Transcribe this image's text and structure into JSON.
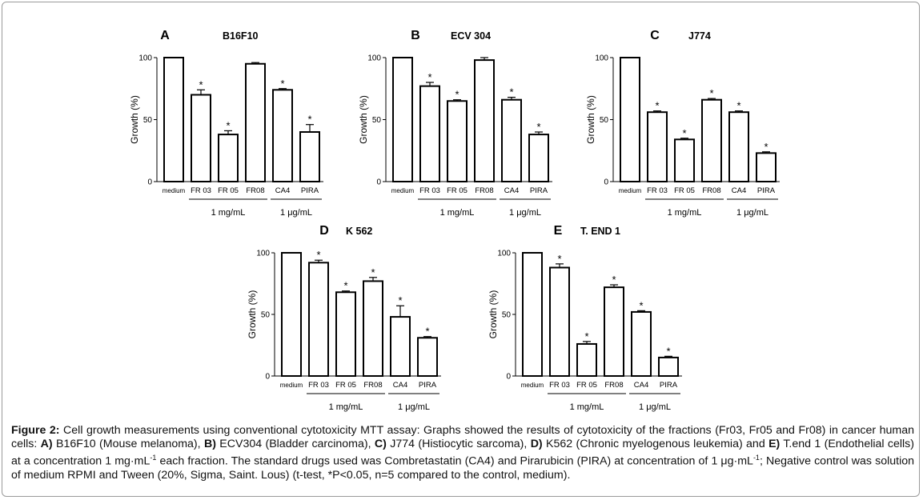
{
  "chart_data": [
    {
      "type": "bar",
      "panel": "A",
      "title": "B16F10",
      "categories": [
        "medium",
        "FR 03",
        "FR 05",
        "FR08",
        "CA4",
        "PIRA"
      ],
      "values": [
        100,
        70,
        38,
        95,
        74,
        40
      ],
      "errors": [
        0,
        4,
        3,
        1,
        1,
        6
      ],
      "significant": [
        false,
        true,
        true,
        false,
        true,
        true
      ],
      "ylabel": "Growth (%)",
      "ylim": [
        0,
        100
      ],
      "yticks": [
        "0",
        "50",
        "100"
      ],
      "groups": [
        {
          "label": "1 mg/mL",
          "from": 1,
          "to": 3
        },
        {
          "label": "1 μg/mL",
          "from": 4,
          "to": 5
        }
      ]
    },
    {
      "type": "bar",
      "panel": "B",
      "title": "ECV 304",
      "categories": [
        "medium",
        "FR 03",
        "FR 05",
        "FR08",
        "CA4",
        "PIRA"
      ],
      "values": [
        100,
        77,
        65,
        98,
        66,
        38
      ],
      "errors": [
        0,
        3,
        1,
        2,
        2,
        2
      ],
      "significant": [
        false,
        true,
        true,
        false,
        true,
        true
      ],
      "ylabel": "Growth (%)",
      "ylim": [
        0,
        100
      ],
      "yticks": [
        "0",
        "50",
        "100"
      ],
      "groups": [
        {
          "label": "1 mg/mL",
          "from": 1,
          "to": 3
        },
        {
          "label": "1 μg/mL",
          "from": 4,
          "to": 5
        }
      ]
    },
    {
      "type": "bar",
      "panel": "C",
      "title": "J774",
      "categories": [
        "medium",
        "FR 03",
        "FR 05",
        "FR08",
        "CA4",
        "PIRA"
      ],
      "values": [
        100,
        56,
        34,
        66,
        56,
        23
      ],
      "errors": [
        0,
        1,
        1,
        1,
        1,
        1
      ],
      "significant": [
        false,
        true,
        true,
        true,
        true,
        true
      ],
      "ylabel": "Growth (%)",
      "ylim": [
        0,
        100
      ],
      "yticks": [
        "0",
        "50",
        "100"
      ],
      "groups": [
        {
          "label": "1 mg/mL",
          "from": 1,
          "to": 3
        },
        {
          "label": "1 μg/mL",
          "from": 4,
          "to": 5
        }
      ]
    },
    {
      "type": "bar",
      "panel": "D",
      "title": "K 562",
      "categories": [
        "medium",
        "FR 03",
        "FR 05",
        "FR08",
        "CA4",
        "PIRA"
      ],
      "values": [
        100,
        92,
        68,
        77,
        48,
        31
      ],
      "errors": [
        0,
        2,
        1,
        3,
        9,
        1
      ],
      "significant": [
        false,
        true,
        true,
        true,
        true,
        true
      ],
      "ylabel": "Growth (%)",
      "ylim": [
        0,
        100
      ],
      "yticks": [
        "0",
        "50",
        "100"
      ],
      "groups": [
        {
          "label": "1 mg/mL",
          "from": 1,
          "to": 3
        },
        {
          "label": "1 μg/mL",
          "from": 4,
          "to": 5
        }
      ]
    },
    {
      "type": "bar",
      "panel": "E",
      "title": "T. END 1",
      "categories": [
        "medium",
        "FR 03",
        "FR 05",
        "FR08",
        "CA4",
        "PIRA"
      ],
      "values": [
        100,
        88,
        26,
        72,
        52,
        15
      ],
      "errors": [
        0,
        3,
        2,
        2,
        1,
        1
      ],
      "significant": [
        false,
        true,
        true,
        true,
        true,
        true
      ],
      "ylabel": "Growth (%)",
      "ylim": [
        0,
        100
      ],
      "yticks": [
        "0",
        "50",
        "100"
      ],
      "groups": [
        {
          "label": "1 mg/mL",
          "from": 1,
          "to": 3
        },
        {
          "label": "1 μg/mL",
          "from": 4,
          "to": 5
        }
      ]
    }
  ],
  "caption": {
    "figure_label": "Figure 2:",
    "text_1": " Cell growth measurements using conventional cytotoxicity MTT assay: Graphs showed the results of cytotoxicity of the fractions (Fr03, Fr05 and Fr08) in cancer human cells: ",
    "a_label": "A)",
    "a_text": " B16F10 (Mouse melanoma), ",
    "b_label": "B)",
    "b_text": " ECV304 (Bladder carcinoma), ",
    "c_label": "C)",
    "c_text": " J774 (Histiocytic sarcoma), ",
    "d_label": "D)",
    "d_text": " K562 (Chronic myelogenous leukemia) and ",
    "e_label": "E)",
    "e_text": " T.end 1 (Endothelial cells) at a concentration 1 mg·mL",
    "sup_1": "-1",
    "text_2": " each fraction. The standard drugs used was Combretastatin (CA4) and Pirarubicin (PIRA) at concentration of 1 μg·mL",
    "sup_2": "-1",
    "text_3": "; Negative control was solution of medium RPMI and Tween (20%, Sigma, Saint. Lous) (t-test, *P<0.05, n=5 compared to the control, medium)."
  }
}
